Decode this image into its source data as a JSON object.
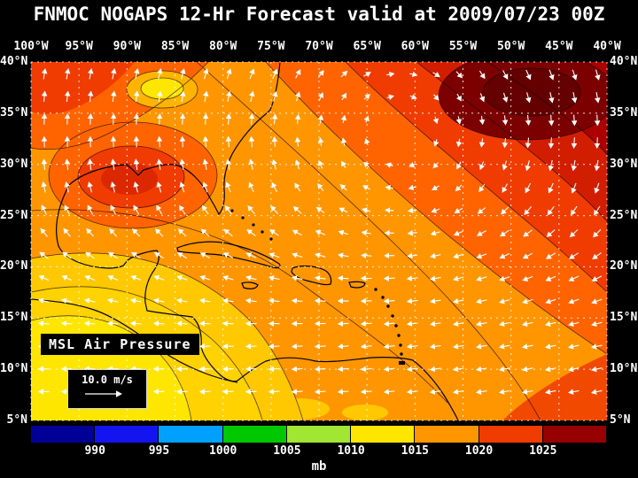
{
  "title": "FNMOC NOGAPS 12-Hr Forecast valid at 2009/07/23 00Z",
  "map": {
    "overlay_label": "MSL Air Pressure",
    "wind_scale_label": "10.0 m/s"
  },
  "axes": {
    "lon_labels": [
      "100°W",
      "95°W",
      "90°W",
      "85°W",
      "80°W",
      "75°W",
      "70°W",
      "65°W",
      "60°W",
      "55°W",
      "50°W",
      "45°W",
      "40°W"
    ],
    "lat_labels": [
      "40°N",
      "35°N",
      "30°N",
      "25°N",
      "20°N",
      "15°N",
      "10°N",
      "5°N"
    ]
  },
  "colorbar": {
    "unit_label": "mb",
    "boundary_labels": [
      "990",
      "995",
      "1000",
      "1005",
      "1010",
      "1015",
      "1020",
      "1025"
    ],
    "segment_colors": [
      "#000096",
      "#1414f0",
      "#00a0ff",
      "#00c800",
      "#a0e632",
      "#ffe600",
      "#ff9600",
      "#f03c00",
      "#960000"
    ]
  },
  "chart_data": {
    "type": "heatmap",
    "title": "FNMOC NOGAPS 12-Hr Forecast valid at 2009/07/23 00Z",
    "variable": "MSL Air Pressure",
    "unit": "mb",
    "lon_range_deg_w": [
      100,
      40
    ],
    "lat_range_deg_n": [
      5,
      40
    ],
    "grid_interval_deg": 5,
    "colorbar_boundaries_mb": [
      990,
      995,
      1000,
      1005,
      1010,
      1015,
      1020,
      1025
    ],
    "wind_vector_scale_m_per_s": 10.0,
    "depicted_pattern": [
      "Dark red high pressure (>1025 mb) over the central North Atlantic near 55W 33N with clockwise (anticyclonic) white wind arrows",
      "Red to orange field (1015-1020 mb) over the western Atlantic, Gulf of Mexico and Caribbean with easterly trade winds south of 25N",
      "Yellow lower pressure (1010-1015 mb) over Central America and the eastern Pacific in the southwest corner",
      "Small yellow relative low oval near 87W 38N over the eastern United States"
    ]
  }
}
